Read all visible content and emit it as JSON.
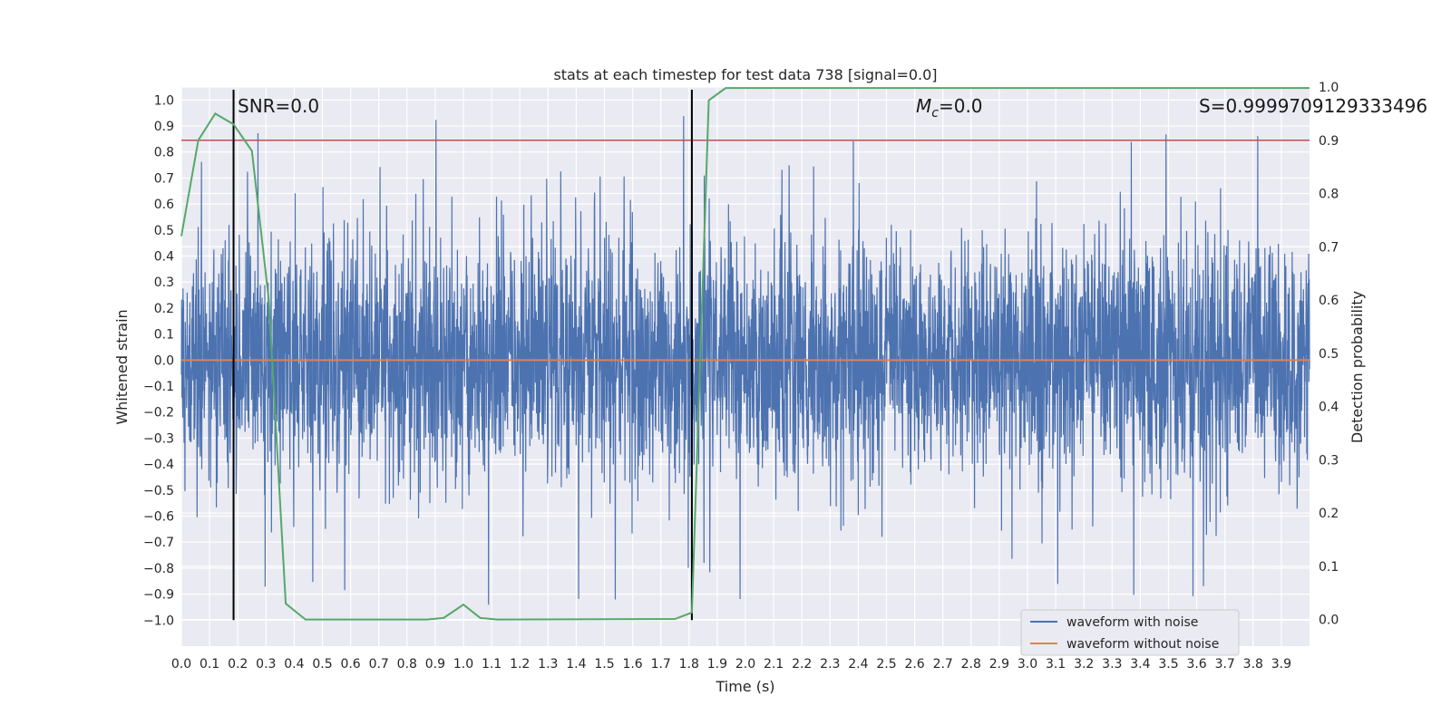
{
  "chart_data": {
    "type": "line",
    "title": "stats at each timestep for test data 738 [signal=0.0]",
    "xlabel": "Time (s)",
    "ylabel_left": "Whitened strain",
    "ylabel_right": "Detection probability",
    "xlim": [
      0.0,
      4.0
    ],
    "ylim_left": [
      -1.1,
      1.05
    ],
    "ylim_right": [
      -0.05,
      1.0
    ],
    "grid": true,
    "legend_position": "lower-right",
    "x_ticks": [
      "0.0",
      "0.1",
      "0.2",
      "0.3",
      "0.4",
      "0.5",
      "0.6",
      "0.7",
      "0.8",
      "0.9",
      "1.0",
      "1.1",
      "1.2",
      "1.3",
      "1.4",
      "1.5",
      "1.6",
      "1.7",
      "1.8",
      "1.9",
      "2.0",
      "2.1",
      "2.2",
      "2.3",
      "2.4",
      "2.5",
      "2.6",
      "2.7",
      "2.8",
      "2.9",
      "3.0",
      "3.1",
      "3.2",
      "3.3",
      "3.4",
      "3.5",
      "3.6",
      "3.7",
      "3.8",
      "3.9"
    ],
    "y_ticks_left": [
      "1.0",
      "0.9",
      "0.8",
      "0.7",
      "0.6",
      "0.5",
      "0.4",
      "0.3",
      "0.2",
      "0.1",
      "0.0",
      "−0.1",
      "−0.2",
      "−0.3",
      "−0.4",
      "−0.5",
      "−0.6",
      "−0.7",
      "−0.8",
      "−0.9",
      "−1.0"
    ],
    "y_ticks_right": [
      "1.0",
      "0.9",
      "0.8",
      "0.7",
      "0.6",
      "0.5",
      "0.4",
      "0.3",
      "0.2",
      "0.1",
      "0.0"
    ],
    "annotations": {
      "snr": "SNR=0.0",
      "mc": "=0.0",
      "mc_symbol": "M",
      "mc_sub": "c",
      "s": "S=0.9999709129333496"
    },
    "vertical_lines_x": [
      0.185,
      1.81
    ],
    "threshold_right": 0.9,
    "series": [
      {
        "name": "waveform with noise",
        "axis": "left",
        "color": "#4c72b0",
        "kind": "noise",
        "envelope_typical": 0.42,
        "extreme_max": 0.97,
        "extreme_min": -1.0
      },
      {
        "name": "waveform without noise",
        "axis": "left",
        "color": "#dd8452",
        "x": [
          0.0,
          4.0
        ],
        "y": [
          0.0,
          0.0
        ]
      },
      {
        "name": "",
        "axis": "right",
        "color": "#55a868",
        "x": [
          0.0,
          0.06,
          0.12,
          0.185,
          0.25,
          0.31,
          0.37,
          0.44,
          0.5,
          0.87,
          0.93,
          1.0,
          1.06,
          1.12,
          1.75,
          1.81,
          1.87,
          1.93,
          4.0
        ],
        "y": [
          0.72,
          0.9,
          0.95,
          0.93,
          0.88,
          0.6,
          0.03,
          0.0,
          0.0,
          0.0,
          0.003,
          0.028,
          0.003,
          0.0,
          0.001,
          0.013,
          0.975,
          0.998,
          0.998
        ]
      }
    ],
    "colors": {
      "plot_bg": "#eaeaf2",
      "grid": "#ffffff",
      "threshold": "#c44e52",
      "vline": "#000000",
      "legend_bg": "#eaeaf2"
    }
  }
}
